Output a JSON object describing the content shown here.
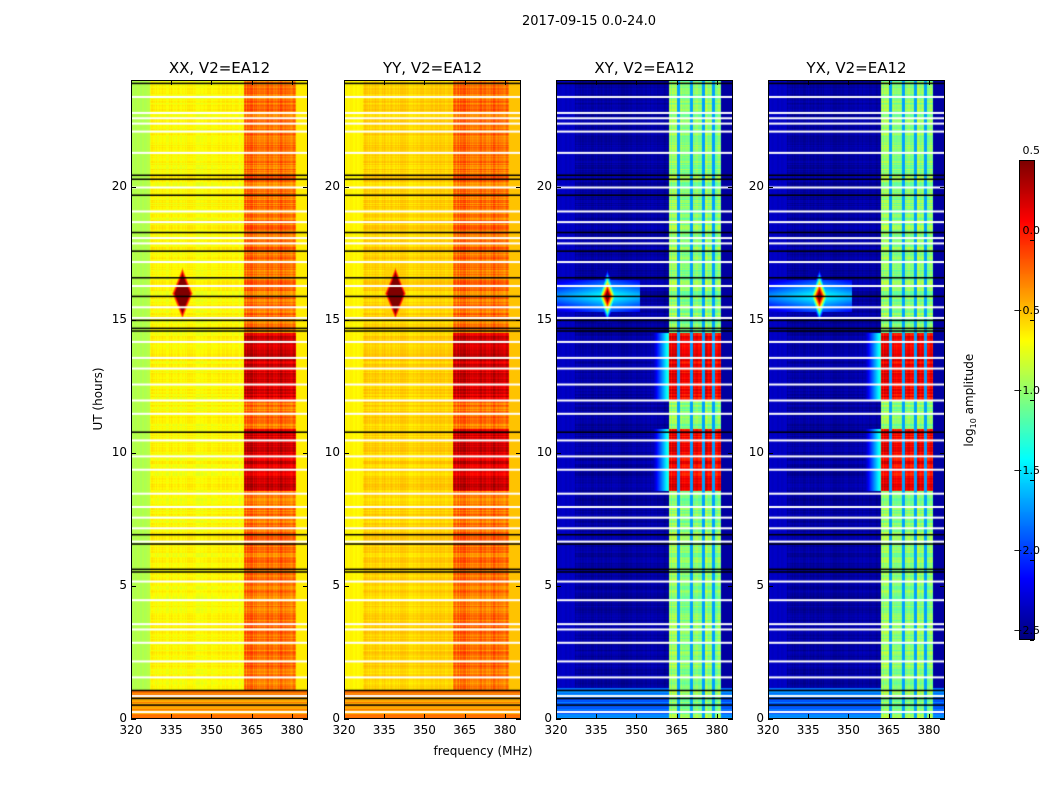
{
  "chart_data": {
    "type": "heatmap",
    "title": "2017-09-15 0.0-24.0",
    "xlabel": "frequency (MHz)",
    "ylabel": "UT (hours)",
    "xlim": [
      320,
      386
    ],
    "ylim": [
      0,
      24
    ],
    "xticks": [
      320,
      335,
      350,
      365,
      380
    ],
    "yticks": [
      0,
      5,
      10,
      15,
      20
    ],
    "colormap": "jet",
    "colorbar": {
      "label_prefix": "log",
      "label_sub": "10",
      "label_suffix": " amplitude",
      "vmin": -2.5,
      "vmax": 0.5,
      "ticks": [
        "0.5",
        "0.0",
        "−0.5",
        "−1.0",
        "−1.5",
        "−2.0",
        "−2.5"
      ],
      "tick_values": [
        0.5,
        0.0,
        -0.5,
        -1.0,
        -1.5,
        -2.0,
        -2.5
      ]
    },
    "panels": [
      {
        "title": "XX, V2=EA12",
        "base": -0.62,
        "edge": -0.85,
        "band": [
          362,
          381.5
        ],
        "band_level": -0.2,
        "active_level": 0.25,
        "band_dips": [],
        "dip_level": 0,
        "rfi": [
          339,
          16.0
        ]
      },
      {
        "title": "YY, V2=EA12",
        "base": -0.5,
        "edge": -0.6,
        "band": [
          360.5,
          381.5
        ],
        "band_level": -0.2,
        "active_level": 0.25,
        "band_dips": [],
        "dip_level": 0,
        "rfi": [
          339,
          16.0
        ]
      },
      {
        "title": "XY, V2=EA12",
        "base": -2.4,
        "edge": -2.3,
        "band": [
          362,
          381.5
        ],
        "band_level": -0.95,
        "active_level": 0.15,
        "band_dips": [
          365.6,
          370.2,
          374.8,
          378.6
        ],
        "dip_level": -1.65,
        "rfi": [
          339,
          15.9
        ]
      },
      {
        "title": "YX, V2=EA12",
        "base": -2.4,
        "edge": -2.3,
        "band": [
          362,
          381.5
        ],
        "band_level": -0.95,
        "active_level": 0.15,
        "band_dips": [
          365.6,
          370.2,
          374.8,
          378.6
        ],
        "dip_level": -1.65,
        "rfi": [
          339,
          15.9
        ]
      }
    ],
    "active_periods_hours": [
      [
        8.6,
        10.9
      ],
      [
        12.0,
        14.5
      ]
    ],
    "flagged_rows_hours": [
      23.4,
      22.8,
      22.6,
      22.4,
      22.1,
      21.3,
      20.0,
      19.1,
      18.7,
      18.1,
      17.9,
      17.2,
      16.3,
      15.5,
      15.1,
      14.2,
      13.6,
      13.2,
      12.6,
      12.0,
      11.5,
      10.5,
      9.9,
      9.4,
      8.5,
      8.0,
      7.6,
      7.2,
      6.7,
      5.2,
      4.5,
      3.6,
      3.4,
      2.9,
      2.2,
      1.6,
      0.9,
      0.3
    ],
    "black_rows_hours": [
      23.9,
      20.45,
      20.3,
      19.7,
      18.3,
      17.6,
      16.6,
      15.9,
      15.0,
      14.7,
      14.6,
      10.8,
      6.95,
      6.6,
      5.65,
      5.55,
      1.1,
      0.8,
      0.55
    ]
  }
}
